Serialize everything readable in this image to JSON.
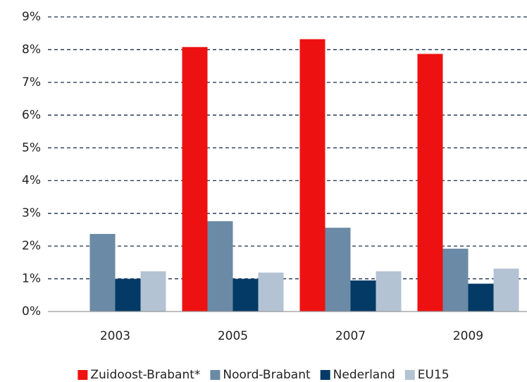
{
  "chart_data": {
    "type": "bar",
    "categories": [
      "2003",
      "2005",
      "2007",
      "2009"
    ],
    "series": [
      {
        "name": "Zuidoost-Brabant*",
        "color": "#ee1111",
        "values": [
          null,
          8.08,
          8.32,
          7.87
        ]
      },
      {
        "name": "Noord-Brabant",
        "color": "#6b8aa6",
        "values": [
          2.37,
          2.76,
          2.56,
          1.92
        ]
      },
      {
        "name": "Nederland",
        "color": "#033a66",
        "values": [
          1.0,
          1.0,
          0.95,
          0.85
        ]
      },
      {
        "name": "EU15",
        "color": "#b3c3d3",
        "values": [
          1.23,
          1.19,
          1.23,
          1.31
        ]
      }
    ],
    "ylim": [
      0,
      9
    ],
    "yticks": [
      {
        "value": 0,
        "label": "0%"
      },
      {
        "value": 1,
        "label": "1%"
      },
      {
        "value": 2,
        "label": "2%"
      },
      {
        "value": 3,
        "label": "3%"
      },
      {
        "value": 4,
        "label": "4%"
      },
      {
        "value": 5,
        "label": "5%"
      },
      {
        "value": 6,
        "label": "6%"
      },
      {
        "value": 7,
        "label": "7%"
      },
      {
        "value": 8,
        "label": "8%"
      },
      {
        "value": 9,
        "label": "9%"
      }
    ],
    "grid": true,
    "legend": "bottom"
  }
}
